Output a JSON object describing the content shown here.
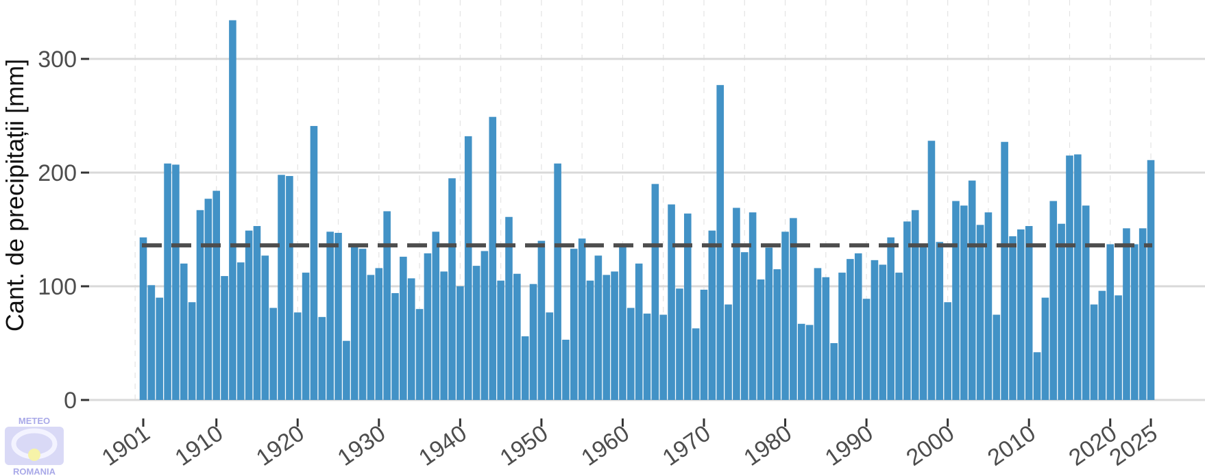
{
  "chart_data": {
    "type": "bar",
    "title": "",
    "xlabel": "",
    "ylabel": "Cant. de precipitații [mm]",
    "x_start": 1901,
    "x_end": 2025,
    "xlim": [
      1901,
      2025
    ],
    "ylim": [
      0,
      335
    ],
    "yticks": [
      0,
      100,
      200,
      300
    ],
    "xticks": [
      "1901",
      "1910",
      "1920",
      "1930",
      "1940",
      "1950",
      "1960",
      "1970",
      "1980",
      "1990",
      "2000",
      "2010",
      "2020",
      "2025"
    ],
    "grid": true,
    "legend": "none",
    "bar_color": "#4292c6",
    "mean_line": {
      "value": 136,
      "style": "dashed",
      "color": "#4d4d4d"
    },
    "values": [
      143,
      101,
      90,
      208,
      207,
      120,
      86,
      167,
      177,
      184,
      109,
      334,
      121,
      149,
      153,
      127,
      81,
      198,
      197,
      77,
      112,
      241,
      73,
      148,
      147,
      52,
      135,
      133,
      110,
      116,
      166,
      94,
      126,
      107,
      80,
      129,
      148,
      113,
      195,
      100,
      232,
      118,
      131,
      249,
      105,
      161,
      111,
      56,
      102,
      140,
      77,
      208,
      53,
      133,
      142,
      105,
      127,
      110,
      113,
      136,
      81,
      120,
      76,
      190,
      75,
      172,
      98,
      164,
      63,
      97,
      149,
      277,
      84,
      169,
      130,
      165,
      106,
      134,
      115,
      148,
      160,
      67,
      66,
      116,
      108,
      50,
      112,
      124,
      129,
      89,
      123,
      119,
      143,
      112,
      157,
      167,
      137,
      228,
      139,
      86,
      175,
      171,
      193,
      154,
      165,
      75,
      227,
      144,
      150,
      153,
      42,
      90,
      175,
      155,
      215,
      216,
      171,
      84,
      96,
      137,
      92,
      151,
      137,
      151,
      211
    ]
  },
  "logo": {
    "top_text": "METEO",
    "bottom_text": "ROMANIA"
  }
}
